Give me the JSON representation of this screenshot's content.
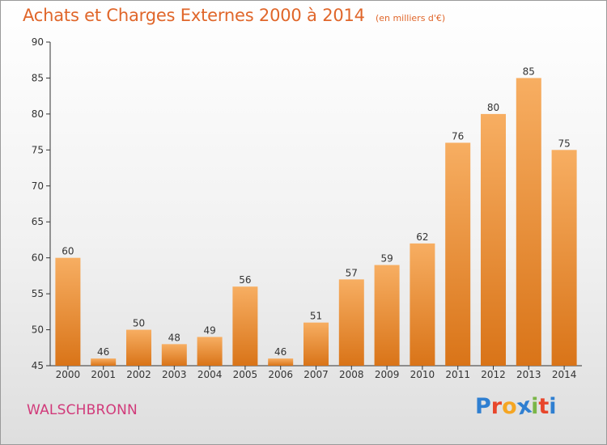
{
  "title": "Achats et Charges Externes 2000 à 2014",
  "subtitle": "(en milliers d'€)",
  "commune": "WALSCHBRONN",
  "logo": {
    "letters": [
      "P",
      "r",
      "o",
      "x",
      "i",
      "t",
      "i"
    ],
    "colors": [
      "#2f7fd1",
      "#e8462b",
      "#f5a623",
      "#2f7fd1",
      "#7ab648",
      "#e8462b",
      "#2f7fd1"
    ]
  },
  "colors": {
    "bar_light": "#f7ae62",
    "bar_dark": "#d97418",
    "axis": "#333333",
    "text": "#e0662a"
  },
  "chart_data": {
    "type": "bar",
    "title": "Achats et Charges Externes 2000 à 2014",
    "subtitle": "(en milliers d'€)",
    "categories": [
      "2000",
      "2001",
      "2002",
      "2003",
      "2004",
      "2005",
      "2006",
      "2007",
      "2008",
      "2009",
      "2010",
      "2011",
      "2012",
      "2013",
      "2014"
    ],
    "values": [
      60,
      46,
      50,
      48,
      49,
      56,
      46,
      51,
      57,
      59,
      62,
      76,
      80,
      85,
      75
    ],
    "ylim": [
      45,
      90
    ],
    "yticks": [
      45,
      50,
      55,
      60,
      65,
      70,
      75,
      80,
      85,
      90
    ],
    "grid": false,
    "data_labels": true
  }
}
